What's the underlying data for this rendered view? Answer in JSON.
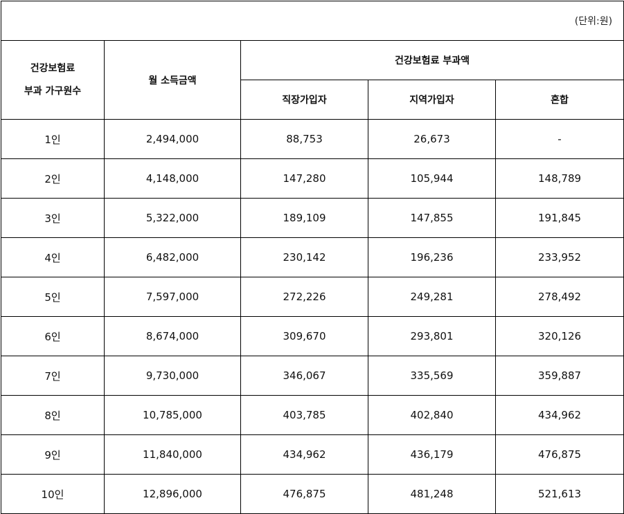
{
  "unit_note": "(단위:원)",
  "headers": {
    "household_line1": "건강보험료",
    "household_line2": "부과 가구원수",
    "income": "월 소득금액",
    "premium_group": "건강보험료 부과액",
    "employee": "직장가입자",
    "regional": "지역가입자",
    "mixed": "혼합"
  },
  "rows": [
    {
      "household": "1인",
      "income": "2,494,000",
      "employee": "88,753",
      "regional": "26,673",
      "mixed": "-"
    },
    {
      "household": "2인",
      "income": "4,148,000",
      "employee": "147,280",
      "regional": "105,944",
      "mixed": "148,789"
    },
    {
      "household": "3인",
      "income": "5,322,000",
      "employee": "189,109",
      "regional": "147,855",
      "mixed": "191,845"
    },
    {
      "household": "4인",
      "income": "6,482,000",
      "employee": "230,142",
      "regional": "196,236",
      "mixed": "233,952"
    },
    {
      "household": "5인",
      "income": "7,597,000",
      "employee": "272,226",
      "regional": "249,281",
      "mixed": "278,492"
    },
    {
      "household": "6인",
      "income": "8,674,000",
      "employee": "309,670",
      "regional": "293,801",
      "mixed": "320,126"
    },
    {
      "household": "7인",
      "income": "9,730,000",
      "employee": "346,067",
      "regional": "335,569",
      "mixed": "359,887"
    },
    {
      "household": "8인",
      "income": "10,785,000",
      "employee": "403,785",
      "regional": "402,840",
      "mixed": "434,962"
    },
    {
      "household": "9인",
      "income": "11,840,000",
      "employee": "434,962",
      "regional": "436,179",
      "mixed": "476,875"
    },
    {
      "household": "10인",
      "income": "12,896,000",
      "employee": "476,875",
      "regional": "481,248",
      "mixed": "521,613"
    }
  ]
}
